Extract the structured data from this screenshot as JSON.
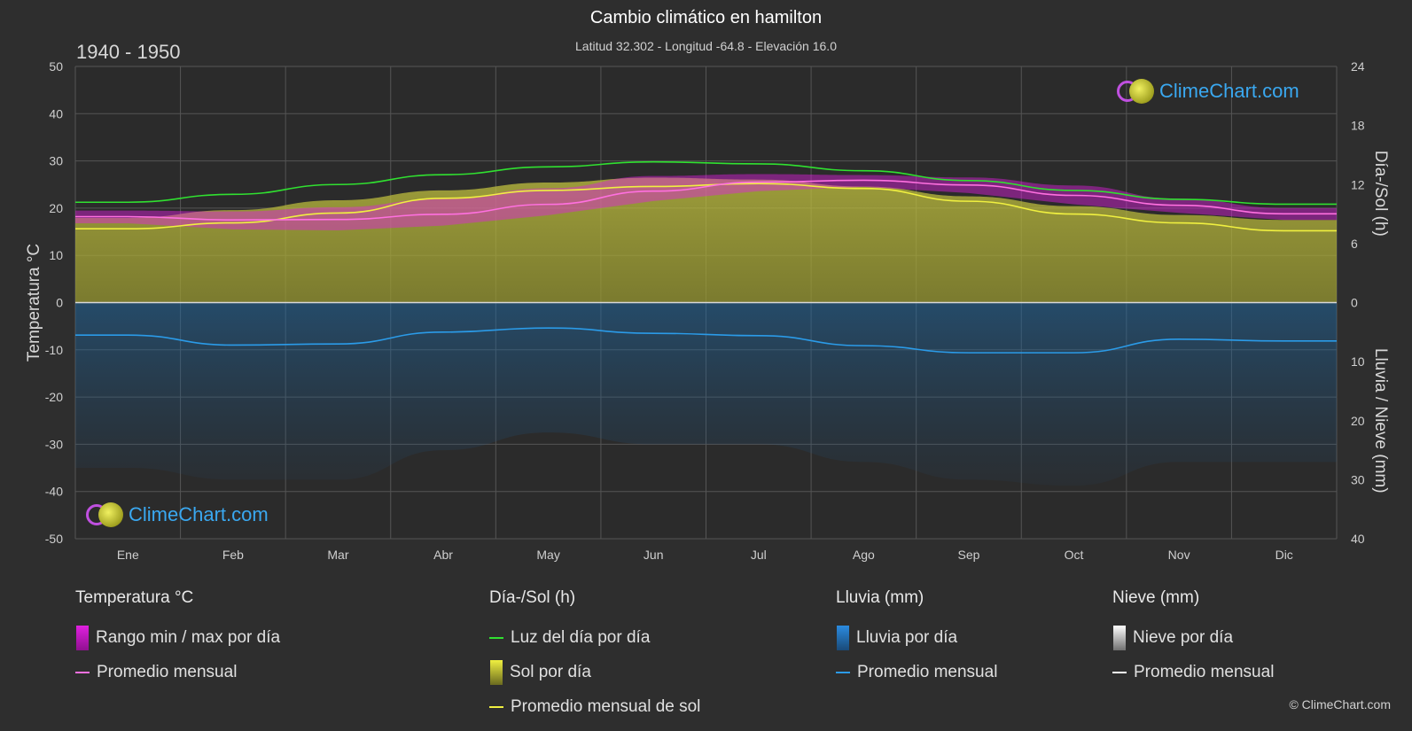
{
  "header": {
    "title": "Cambio climático en hamilton",
    "subtitle": "Latitud 32.302 - Longitud -64.8 - Elevación 16.0",
    "period": "1940 - 1950"
  },
  "logo": {
    "text": "ClimeChart.com"
  },
  "copyright": "© ClimeChart.com",
  "legend": {
    "temperature": {
      "title": "Temperatura °C",
      "range_label": "Rango min / max por día",
      "avg_label": "Promedio mensual"
    },
    "sun": {
      "title": "Día-/Sol (h)",
      "daylight_label": "Luz del día por día",
      "sun_label": "Sol por día",
      "avg_label": "Promedio mensual de sol"
    },
    "rain": {
      "title": "Lluvia (mm)",
      "rain_label": "Lluvia por día",
      "avg_label": "Promedio mensual"
    },
    "snow": {
      "title": "Nieve (mm)",
      "snow_label": "Nieve por día",
      "avg_label": "Promedio mensual"
    }
  },
  "colors": {
    "background": "#2e2e2e",
    "temp_range": "#e020e0",
    "temp_avg": "#ff70e0",
    "daylight": "#30e030",
    "sun_fill": "#b0b030",
    "sun_avg": "#f0f040",
    "rain_fill": "#1a6fb0",
    "rain_avg": "#2b9be8",
    "snow_fill": "#e0e0e0",
    "snow_avg": "#ffffff"
  },
  "chart_data": {
    "type": "area",
    "title": "Cambio climático en hamilton",
    "months": [
      "Ene",
      "Feb",
      "Mar",
      "Abr",
      "May",
      "Jun",
      "Jul",
      "Ago",
      "Sep",
      "Oct",
      "Nov",
      "Dic"
    ],
    "y_left": {
      "label": "Temperatura °C",
      "range": [
        -50,
        50
      ],
      "ticks": [
        50,
        40,
        30,
        20,
        10,
        0,
        -10,
        -20,
        -30,
        -40,
        -50
      ]
    },
    "y_right_top": {
      "label": "Día-/Sol (h)",
      "range": [
        0,
        24
      ],
      "ticks": [
        24,
        18,
        12,
        6,
        0
      ]
    },
    "y_right_bottom": {
      "label": "Lluvia / Nieve (mm)",
      "range": [
        0,
        40
      ],
      "ticks": [
        0,
        10,
        20,
        30,
        40
      ]
    },
    "series": [
      {
        "name": "Luz del día por día",
        "axis": "sun_h",
        "values": [
          10.2,
          11.0,
          12.0,
          13.0,
          13.8,
          14.3,
          14.1,
          13.4,
          12.4,
          11.4,
          10.5,
          10.0
        ]
      },
      {
        "name": "Promedio mensual de sol",
        "axis": "sun_h",
        "values": [
          7.5,
          8.1,
          9.1,
          10.6,
          11.4,
          11.8,
          12.1,
          11.6,
          10.3,
          9.0,
          8.1,
          7.3
        ]
      },
      {
        "name": "Temperatura promedio mensual",
        "axis": "temp_c",
        "values": [
          18.2,
          17.5,
          17.6,
          18.7,
          20.8,
          23.6,
          25.5,
          25.9,
          24.9,
          22.7,
          20.6,
          18.8
        ]
      },
      {
        "name": "Temperatura máxima diaria",
        "axis": "temp_c",
        "values": [
          19.5,
          19.3,
          20.2,
          22.0,
          24.2,
          26.8,
          27.2,
          27.0,
          26.5,
          24.8,
          22.0,
          20.0
        ]
      },
      {
        "name": "Temperatura mínima diaria",
        "axis": "temp_c",
        "values": [
          16.8,
          15.5,
          15.3,
          16.3,
          18.5,
          21.5,
          23.6,
          24.5,
          23.2,
          20.8,
          19.0,
          17.5
        ]
      },
      {
        "name": "Lluvia promedio mensual",
        "axis": "precip_mm",
        "values": [
          5.5,
          7.2,
          7.0,
          5.0,
          4.3,
          5.2,
          5.6,
          7.3,
          8.5,
          8.5,
          6.2,
          6.5
        ]
      }
    ],
    "grid": true
  }
}
